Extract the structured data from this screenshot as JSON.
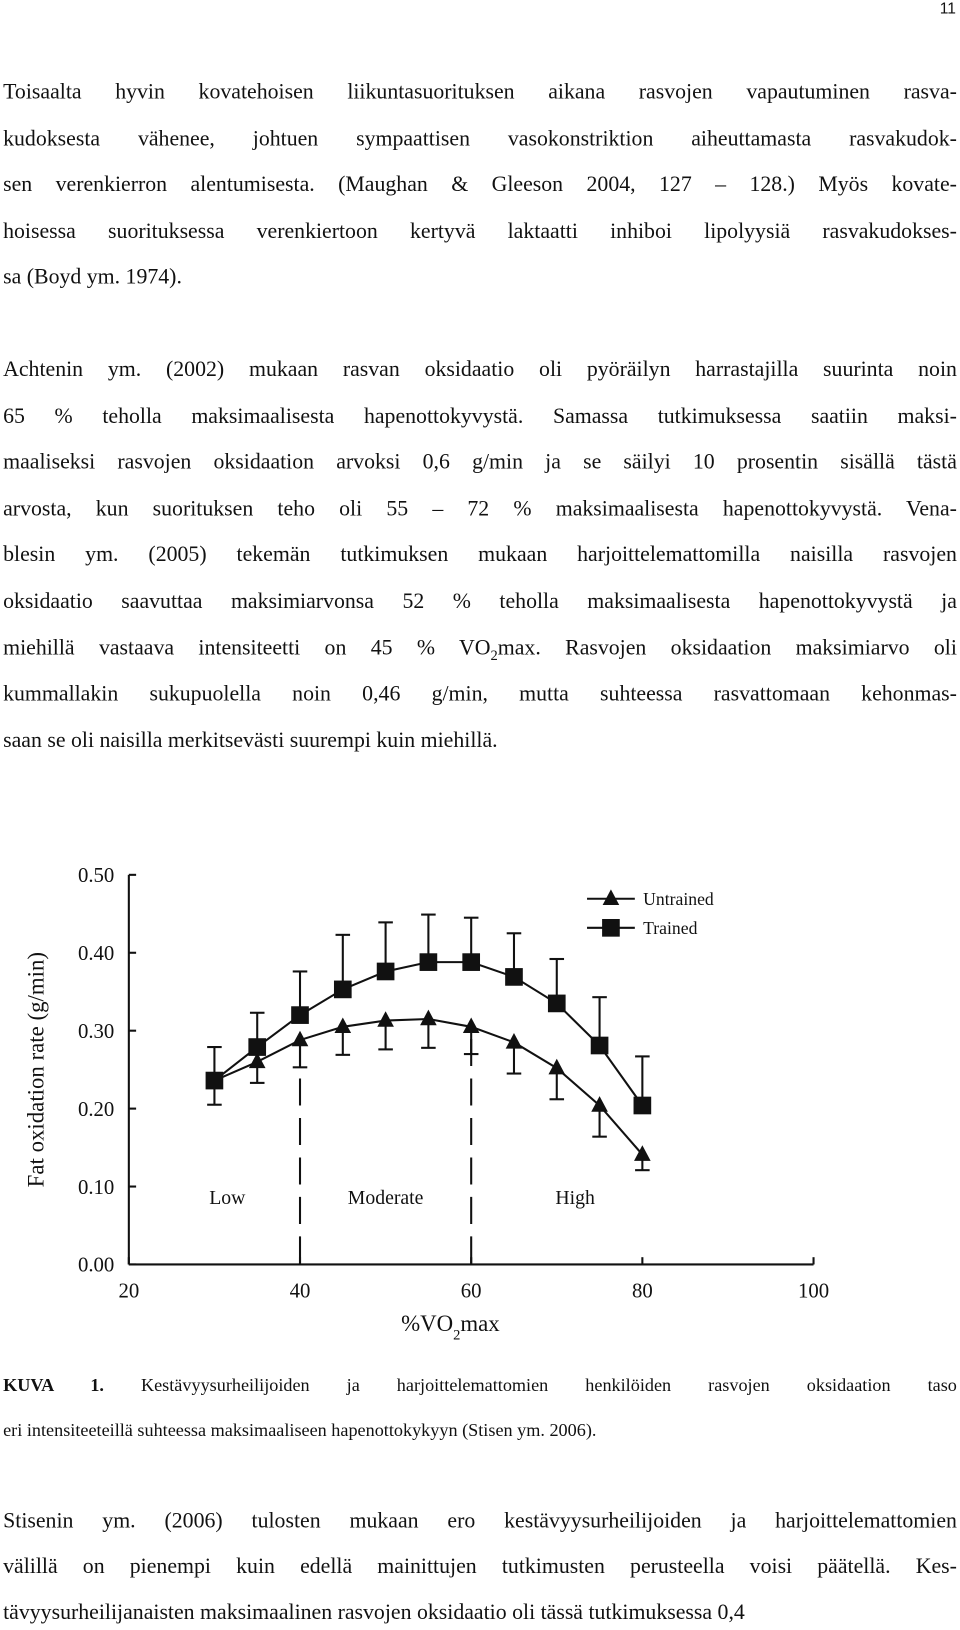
{
  "page_number": "11",
  "paragraphs": [
    [
      "Toisaalta hyvin kovatehoisen liikuntasuorituksen aikana rasvojen vapautuminen rasva-",
      "kudoksesta vähenee, johtuen sympaattisen vasokonstriktion aiheuttamasta rasvakudok-",
      "sen verenkierron alentumisesta. (Maughan & Gleeson 2004, 127 – 128.) Myös kovate-",
      "hoisessa suorituksessa verenkiertoon kertyvä laktaatti inhiboi lipolyysiä rasvakudokses-",
      "sa (Boyd ym. 1974)."
    ],
    [
      "Achtenin ym. (2002) mukaan rasvan oksidaatio oli pyöräilyn harrastajilla suurinta noin",
      "65 % teholla maksimaalisesta hapenottokyvystä. Samassa tutkimuksessa saatiin maksi-",
      "maaliseksi rasvojen oksidaation arvoksi 0,6 g/min ja se säilyi 10 prosentin sisällä tästä",
      "arvosta, kun suorituksen teho oli 55 – 72 % maksimaalisesta hapenottokyvystä. Vena-",
      "blesin ym. (2005) tekemän tutkimuksen mukaan harjoittelemattomilla naisilla rasvojen",
      "oksidaatio saavuttaa maksimiarvonsa 52 % teholla maksimaalisesta hapenottokyvystä ja",
      [
        "miehillä vastaava intensiteetti on 45 % VO",
        "2",
        "max. Rasvojen oksidaation maksimiarvo oli"
      ],
      "kummallakin sukupuolella noin 0,46 g/min, mutta suhteessa rasvattomaan kehonmas-",
      "saan se oli naisilla merkitsevästi suurempi kuin miehillä."
    ],
    [
      "Stisenin ym. (2006) tulosten mukaan ero kestävyysurheilijoiden ja harjoittelemattomien",
      "välillä on pienempi kuin edellä mainittujen tutkimusten perusteella voisi päätellä. Kes-",
      "tävyysurheilijanaisten maksimaalinen rasvojen oksidaatio oli tässä tutkimuksessa 0,4"
    ]
  ],
  "caption": {
    "label": "KUVA 1.",
    "lines": [
      " Kestävyysurheilijoiden ja harjoittelemattomien henkilöiden rasvojen oksidaation taso",
      "eri intensiteeteillä suhteessa maksimaaliseen hapenottokykyyn (Stisen ym. 2006)."
    ]
  },
  "chart_data": {
    "type": "line",
    "y_label": "Fat oxidation rate (g/min)",
    "x_label": [
      "%VO",
      "2",
      "max"
    ],
    "x": [
      30,
      35,
      40,
      45,
      50,
      55,
      60,
      65,
      70,
      75,
      80
    ],
    "xlim": [
      20,
      100
    ],
    "xticks": [
      20,
      40,
      60,
      80,
      100
    ],
    "ylim": [
      0,
      0.5
    ],
    "yticks": [
      {
        "value": 0,
        "label": "0.00"
      },
      {
        "value": 0.1,
        "label": "0.10"
      },
      {
        "value": 0.2,
        "label": "0.20"
      },
      {
        "value": 0.3,
        "label": "0.30"
      },
      {
        "value": 0.4,
        "label": "0.40"
      },
      {
        "value": 0.5,
        "label": "0.50"
      }
    ],
    "grid": false,
    "legend": "top-right",
    "zone_boundaries": [
      40,
      60
    ],
    "zones": [
      "Low",
      "Moderate",
      "High"
    ],
    "series": [
      {
        "name": "Untrained",
        "color": "#111111",
        "marker": "triangle",
        "error_direction": "down",
        "values": [
          0.236,
          0.26,
          0.288,
          0.305,
          0.313,
          0.315,
          0.305,
          0.285,
          0.252,
          0.204,
          0.141
        ],
        "errors": [
          0.031,
          0.027,
          0.035,
          0.036,
          0.037,
          0.037,
          0.035,
          0.04,
          0.04,
          0.04,
          0.02
        ]
      },
      {
        "name": "Trained",
        "color": "#111111",
        "marker": "square",
        "error_direction": "up",
        "values": [
          0.236,
          0.279,
          0.32,
          0.353,
          0.376,
          0.388,
          0.388,
          0.369,
          0.335,
          0.281,
          0.204
        ],
        "errors": [
          0.043,
          0.044,
          0.056,
          0.07,
          0.063,
          0.061,
          0.057,
          0.056,
          0.057,
          0.062,
          0.063
        ]
      }
    ]
  }
}
